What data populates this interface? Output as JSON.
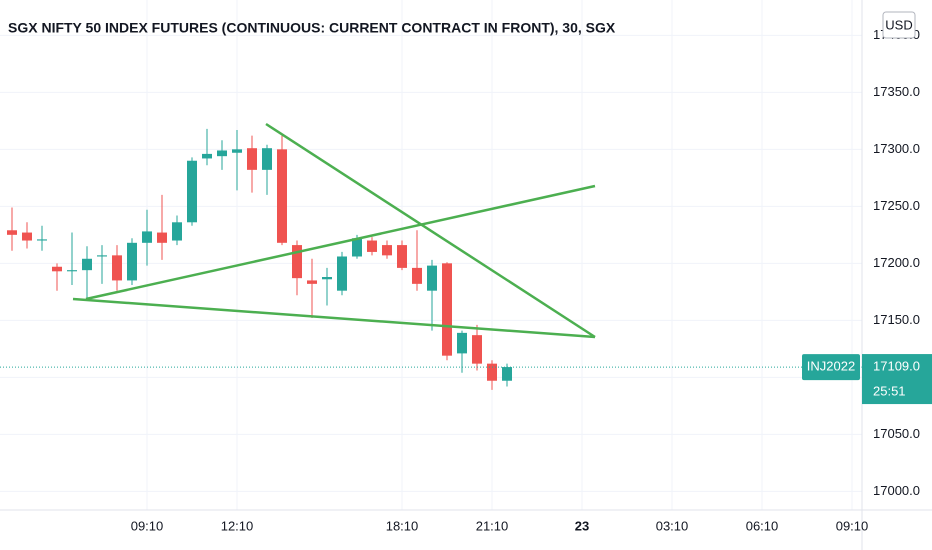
{
  "chart_data": {
    "type": "candlestick",
    "title": "SGX NIFTY 50 INDEX FUTURES (CONTINUOUS: CURRENT CONTRACT IN FRONT), 30, SGX",
    "currency": "USD",
    "categories": [
      null,
      null,
      null,
      null,
      null,
      null,
      null,
      null,
      null,
      "09:10",
      null,
      null,
      null,
      null,
      null,
      "12:10",
      null,
      null,
      null,
      null,
      null,
      null,
      null,
      null,
      null,
      null,
      "18:10",
      null,
      null,
      null,
      null,
      null,
      "21:10",
      null,
      null,
      null,
      null,
      null,
      "23",
      null,
      null,
      null,
      null,
      null,
      "03:10",
      null,
      null,
      null,
      null,
      null,
      "06:10",
      null,
      null,
      null,
      null,
      null,
      "09:10"
    ],
    "open": [
      17229,
      17227,
      17220,
      17197,
      17193,
      17194,
      17206,
      17207,
      17185,
      17218,
      17227,
      17220,
      17236,
      17292,
      17294,
      17297,
      17301,
      17282,
      17300,
      17216,
      17185,
      17186,
      17176,
      17206,
      17220,
      17216,
      17216,
      17196,
      17176,
      17200,
      17121,
      17137,
      17112,
      17097,
      null,
      null,
      null,
      null,
      null,
      null,
      null,
      null,
      null,
      null,
      null,
      null,
      null,
      null,
      null,
      null,
      null,
      null,
      null,
      null,
      null,
      null,
      null
    ],
    "high": [
      17249,
      17236,
      17233,
      17200,
      17227,
      17215,
      17216,
      17216,
      17222,
      17247,
      17260,
      17242,
      17293,
      17318,
      17308,
      17317,
      17312,
      17304,
      17312,
      17220,
      17204,
      17196,
      17210,
      17225,
      17223,
      17220,
      17220,
      17229,
      17203,
      17201,
      17141,
      17146,
      17115,
      17112,
      null,
      null,
      null,
      null,
      null,
      null,
      null,
      null,
      null,
      null,
      null,
      null,
      null,
      null,
      null,
      null,
      null,
      null,
      null,
      null,
      null,
      null,
      null
    ],
    "low": [
      17211,
      17213,
      17211,
      17176,
      17181,
      17168,
      17182,
      17176,
      17181,
      17198,
      17203,
      17216,
      17233,
      17286,
      17282,
      17264,
      17262,
      17260,
      17216,
      17172,
      17152,
      17163,
      17172,
      17204,
      17207,
      17204,
      17194,
      17176,
      17141,
      17115,
      17104,
      17106,
      17089,
      17092,
      null,
      null,
      null,
      null,
      null,
      null,
      null,
      null,
      null,
      null,
      null,
      null,
      null,
      null,
      null,
      null,
      null,
      null,
      null,
      null,
      null,
      null,
      null
    ],
    "close": [
      17225,
      17220,
      17221,
      17193,
      17194,
      17204,
      17207,
      17185,
      17218,
      17228,
      17218,
      17236,
      17290,
      17296,
      17299,
      17300,
      17282,
      17301,
      17218,
      17187,
      17182,
      17188,
      17206,
      17222,
      17210,
      17207,
      17196,
      17182,
      17198,
      17119,
      17139,
      17112,
      17097,
      17109,
      null,
      null,
      null,
      null,
      null,
      null,
      null,
      null,
      null,
      null,
      null,
      null,
      null,
      null,
      null,
      null,
      null,
      null,
      null,
      null,
      null,
      null,
      null
    ],
    "up_color": "#26a69a",
    "down_color": "#ef5350",
    "ylim": [
      16988,
      17431
    ],
    "yticks": [
      {
        "value": 17000,
        "label": "17000.0"
      },
      {
        "value": 17050,
        "label": "17050.0"
      },
      {
        "value": 17100,
        "label": "17100.0"
      },
      {
        "value": 17150,
        "label": "17150.0"
      },
      {
        "value": 17200,
        "label": "17200.0"
      },
      {
        "value": 17250,
        "label": "17250.0"
      },
      {
        "value": 17300,
        "label": "17300.0"
      },
      {
        "value": 17350,
        "label": "17350.0"
      },
      {
        "value": 17400,
        "label": "17400.0"
      }
    ],
    "grid": true,
    "last_price": {
      "value": 17109,
      "label": "17109.0"
    },
    "countdown": "25:51",
    "symbol_label": "INJ2022"
  }
}
